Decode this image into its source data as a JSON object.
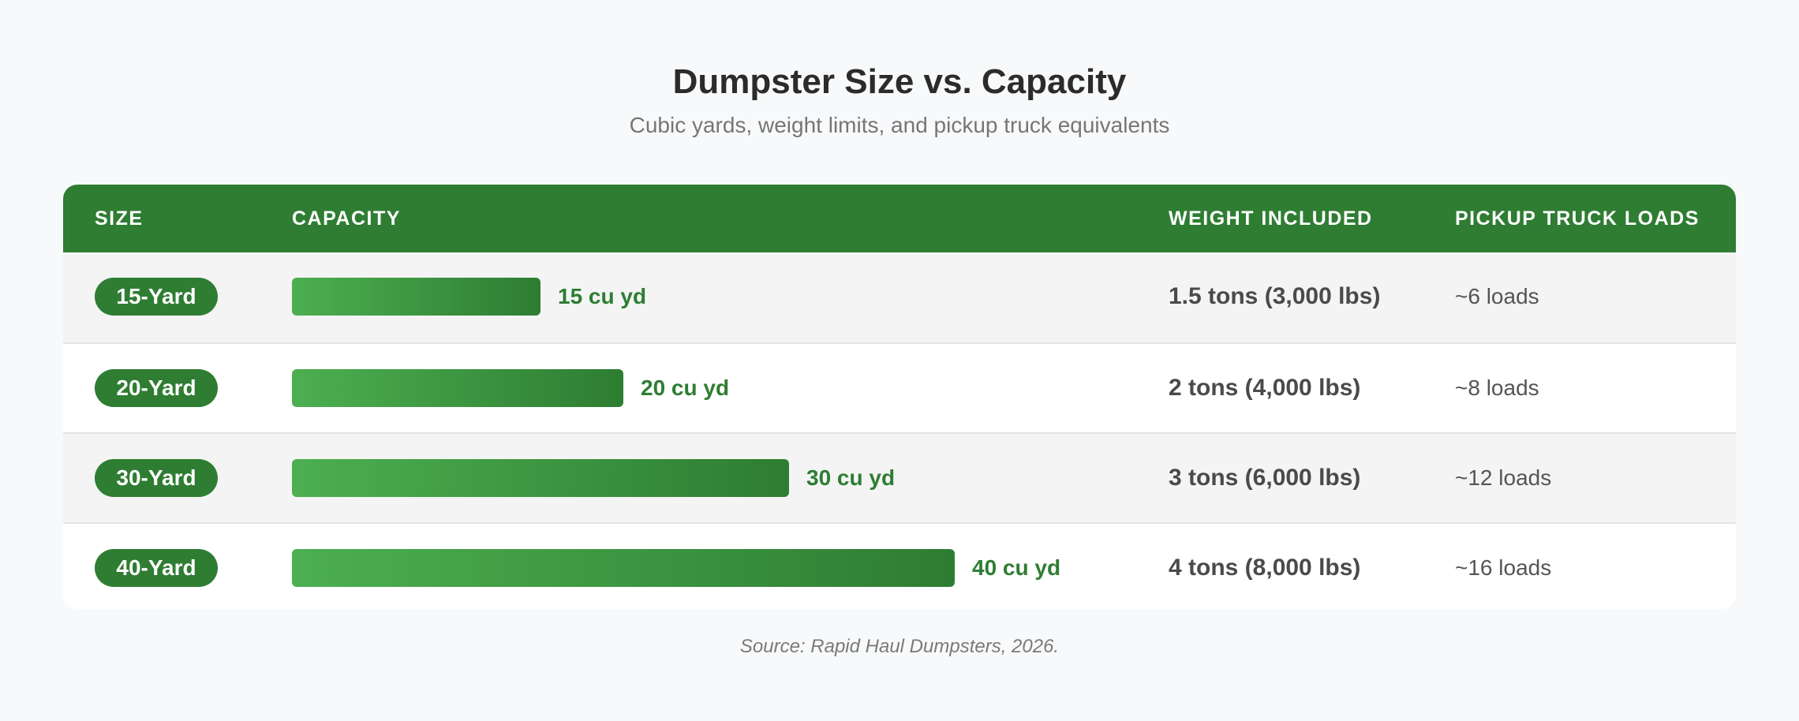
{
  "chart_data": {
    "type": "bar",
    "title": "Dumpster Size vs. Capacity",
    "subtitle": "Cubic yards, weight limits, and pickup truck equivalents",
    "columns": [
      "SIZE",
      "CAPACITY",
      "WEIGHT INCLUDED",
      "PICKUP TRUCK LOADS"
    ],
    "categories": [
      "15-Yard",
      "20-Yard",
      "30-Yard",
      "40-Yard"
    ],
    "values": [
      15,
      20,
      30,
      40
    ],
    "value_labels": [
      "15 cu yd",
      "20 cu yd",
      "30 cu yd",
      "40 cu yd"
    ],
    "unit": "cu yd",
    "weight_included": [
      "1.5 tons (3,000 lbs)",
      "2 tons (4,000 lbs)",
      "3 tons (6,000 lbs)",
      "4 tons (8,000 lbs)"
    ],
    "pickup_truck_loads": [
      "~6 loads",
      "~8 loads",
      "~12 loads",
      "~16 loads"
    ],
    "source": "Source: Rapid Haul Dumpsters, 2026.",
    "colors": {
      "header": "#2e7d32",
      "bar_start": "#4caf50",
      "bar_end": "#2e7d32",
      "label": "#2e7d32"
    }
  }
}
